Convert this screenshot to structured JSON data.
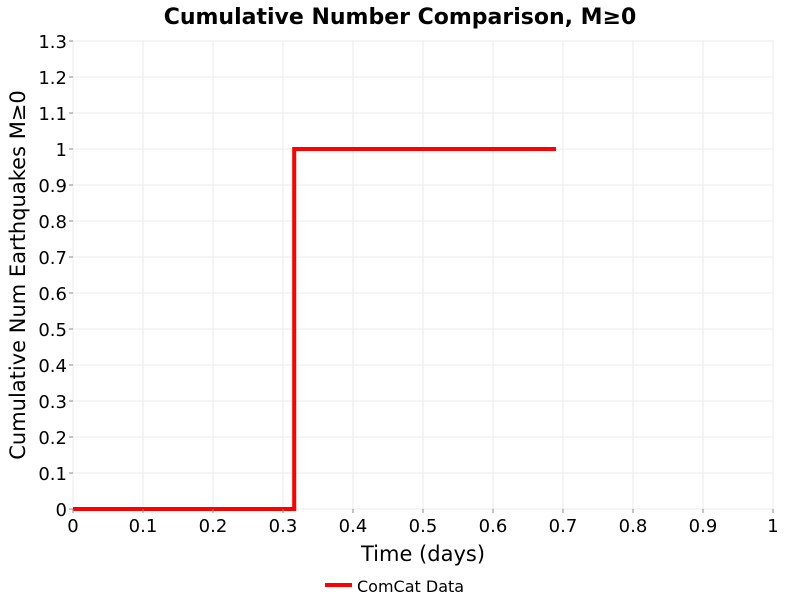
{
  "chart_data": {
    "type": "line",
    "title": "Cumulative Number Comparison, M≥0",
    "xlabel": "Time (days)",
    "ylabel": "Cumulative Num Earthquakes M≥0",
    "xlim": [
      0,
      1
    ],
    "ylim": [
      0,
      1.3
    ],
    "x_ticks": [
      "0",
      "0.1",
      "0.2",
      "0.3",
      "0.4",
      "0.5",
      "0.6",
      "0.7",
      "0.8",
      "0.9",
      "1"
    ],
    "y_ticks": [
      "0",
      "0.1",
      "0.2",
      "0.3",
      "0.4",
      "0.5",
      "0.6",
      "0.7",
      "0.8",
      "0.9",
      "1",
      "1.1",
      "1.2",
      "1.3"
    ],
    "grid": true,
    "legend_position": "bottom-center",
    "series": [
      {
        "name": "ComCat Data",
        "color": "#ff0000",
        "style": "step",
        "points": [
          [
            0,
            0
          ],
          [
            0.316,
            0
          ],
          [
            0.316,
            1
          ],
          [
            0.69,
            1
          ]
        ]
      }
    ]
  }
}
